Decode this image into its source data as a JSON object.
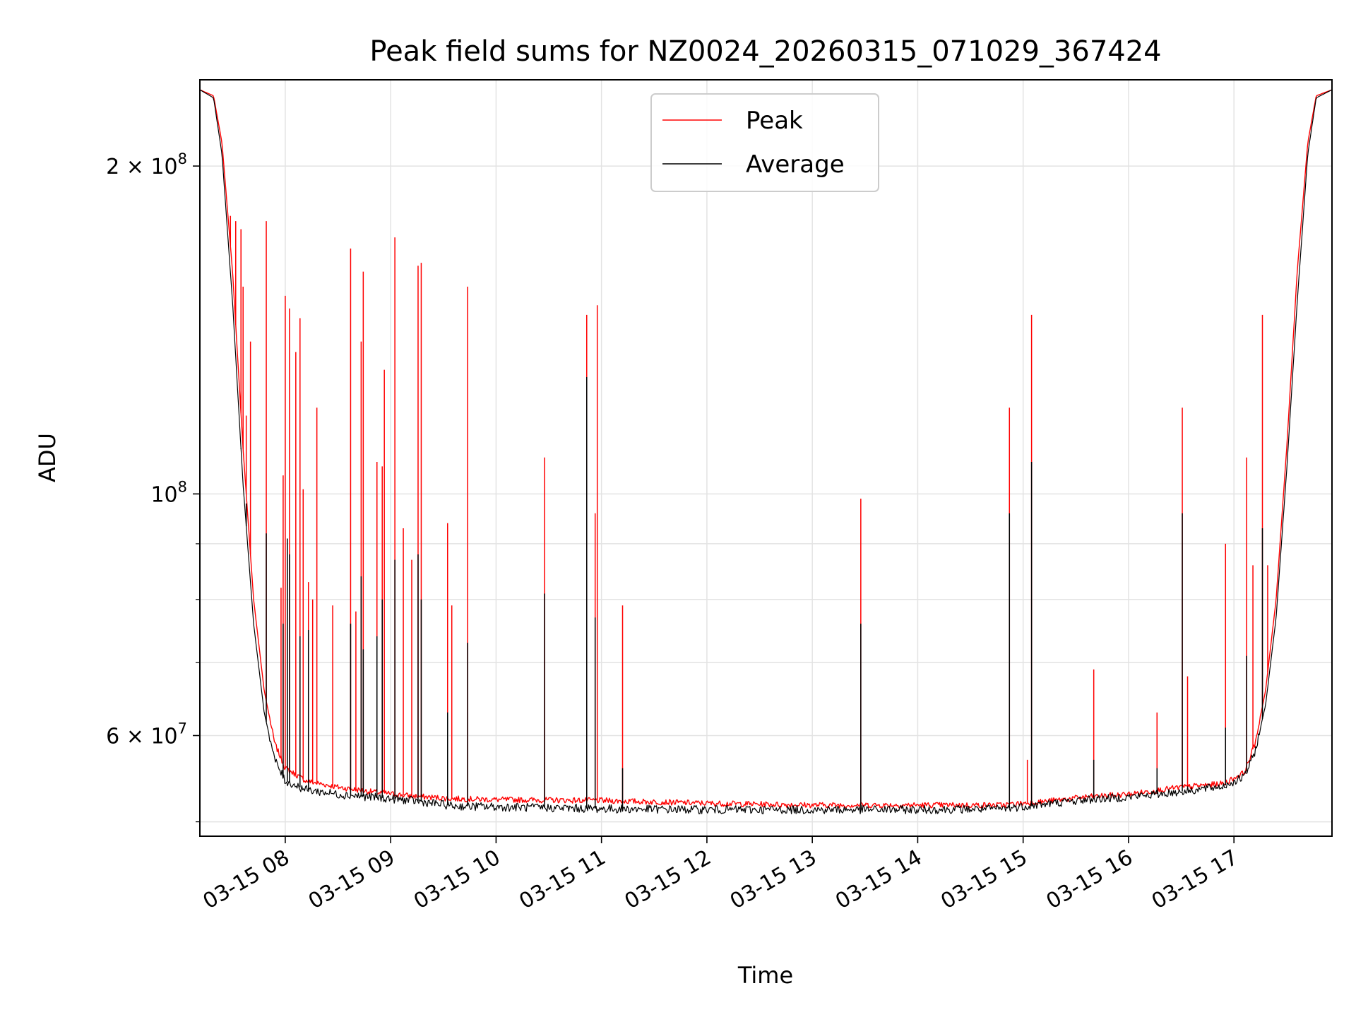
{
  "chart_data": {
    "type": "line",
    "title": "Peak field sums for NZ0024_20260315_071029_367424",
    "xlabel": "Time",
    "ylabel": "ADU",
    "yscale": "log",
    "ylim": [
      48500000,
      240000000
    ],
    "xlim_hours": [
      7.19,
      17.93
    ],
    "x_ticks": [
      {
        "hour": 8,
        "label": "03-15 08"
      },
      {
        "hour": 9,
        "label": "03-15 09"
      },
      {
        "hour": 10,
        "label": "03-15 10"
      },
      {
        "hour": 11,
        "label": "03-15 11"
      },
      {
        "hour": 12,
        "label": "03-15 12"
      },
      {
        "hour": 13,
        "label": "03-15 13"
      },
      {
        "hour": 14,
        "label": "03-15 14"
      },
      {
        "hour": 15,
        "label": "03-15 15"
      },
      {
        "hour": 16,
        "label": "03-15 16"
      },
      {
        "hour": 17,
        "label": "03-15 17"
      }
    ],
    "y_major_ticks": [
      {
        "value": 60000000,
        "mantissa": "6",
        "exponent": "7"
      },
      {
        "value": 100000000,
        "mantissa": "",
        "exponent": "8"
      },
      {
        "value": 200000000,
        "mantissa": "2",
        "exponent": "8"
      }
    ],
    "y_minor_values": [
      50000000,
      70000000,
      80000000,
      90000000
    ],
    "grid": true,
    "legend_position": "top-center",
    "colors": {
      "peak": "#ff0000",
      "average": "#000000"
    },
    "series": [
      {
        "name": "Peak",
        "color": "#ff0000",
        "baseline": [
          [
            7.19,
            235000000
          ],
          [
            7.32,
            232000000
          ],
          [
            7.4,
            210000000
          ],
          [
            7.5,
            160000000
          ],
          [
            7.6,
            110000000
          ],
          [
            7.7,
            80000000
          ],
          [
            7.8,
            66000000
          ],
          [
            7.9,
            59000000
          ],
          [
            8.0,
            56000000
          ],
          [
            8.2,
            54500000
          ],
          [
            8.5,
            53800000
          ],
          [
            8.8,
            53300000
          ],
          [
            9.2,
            52800000
          ],
          [
            9.6,
            52500000
          ],
          [
            10.0,
            52400000
          ],
          [
            11.0,
            52300000
          ],
          [
            12.0,
            52000000
          ],
          [
            13.0,
            51800000
          ],
          [
            14.0,
            51800000
          ],
          [
            14.8,
            51800000
          ],
          [
            15.2,
            52200000
          ],
          [
            15.6,
            52700000
          ],
          [
            16.0,
            53000000
          ],
          [
            16.5,
            53800000
          ],
          [
            16.9,
            54200000
          ],
          [
            17.1,
            55500000
          ],
          [
            17.2,
            59000000
          ],
          [
            17.3,
            66000000
          ],
          [
            17.4,
            80000000
          ],
          [
            17.5,
            110000000
          ],
          [
            17.6,
            160000000
          ],
          [
            17.7,
            210000000
          ],
          [
            17.78,
            232000000
          ],
          [
            17.93,
            235000000
          ]
        ],
        "spikes": [
          [
            7.48,
            180000000
          ],
          [
            7.53,
            178000000
          ],
          [
            7.58,
            175000000
          ],
          [
            7.6,
            155000000
          ],
          [
            7.63,
            118000000
          ],
          [
            7.67,
            138000000
          ],
          [
            7.82,
            178000000
          ],
          [
            7.96,
            82000000
          ],
          [
            7.98,
            104000000
          ],
          [
            8.0,
            152000000
          ],
          [
            8.04,
            148000000
          ],
          [
            8.1,
            135000000
          ],
          [
            8.14,
            145000000
          ],
          [
            8.17,
            101000000
          ],
          [
            8.22,
            83000000
          ],
          [
            8.26,
            80000000
          ],
          [
            8.3,
            120000000
          ],
          [
            8.45,
            79000000
          ],
          [
            8.62,
            168000000
          ],
          [
            8.67,
            78000000
          ],
          [
            8.72,
            138000000
          ],
          [
            8.74,
            160000000
          ],
          [
            8.87,
            107000000
          ],
          [
            8.92,
            106000000
          ],
          [
            8.94,
            130000000
          ],
          [
            9.04,
            172000000
          ],
          [
            9.12,
            93000000
          ],
          [
            9.2,
            87000000
          ],
          [
            9.26,
            162000000
          ],
          [
            9.29,
            163000000
          ],
          [
            9.54,
            94000000
          ],
          [
            9.58,
            79000000
          ],
          [
            9.73,
            155000000
          ],
          [
            10.46,
            108000000
          ],
          [
            10.86,
            146000000
          ],
          [
            10.94,
            96000000
          ],
          [
            10.96,
            149000000
          ],
          [
            11.2,
            79000000
          ],
          [
            13.46,
            99000000
          ],
          [
            14.87,
            120000000
          ],
          [
            15.04,
            57000000
          ],
          [
            15.08,
            146000000
          ],
          [
            15.67,
            69000000
          ],
          [
            16.27,
            63000000
          ],
          [
            16.51,
            120000000
          ],
          [
            16.56,
            68000000
          ],
          [
            16.92,
            90000000
          ],
          [
            17.12,
            108000000
          ],
          [
            17.18,
            86000000
          ],
          [
            17.27,
            146000000
          ],
          [
            17.32,
            86000000
          ]
        ]
      },
      {
        "name": "Average",
        "color": "#000000",
        "baseline": [
          [
            7.19,
            235000000
          ],
          [
            7.32,
            231000000
          ],
          [
            7.4,
            205000000
          ],
          [
            7.5,
            150000000
          ],
          [
            7.6,
            102000000
          ],
          [
            7.7,
            76000000
          ],
          [
            7.8,
            63000000
          ],
          [
            7.9,
            57000000
          ],
          [
            8.0,
            54500000
          ],
          [
            8.2,
            53500000
          ],
          [
            8.5,
            53000000
          ],
          [
            8.8,
            52700000
          ],
          [
            9.2,
            52300000
          ],
          [
            9.6,
            51700000
          ],
          [
            10.0,
            51600000
          ],
          [
            11.0,
            51400000
          ],
          [
            12.0,
            51300000
          ],
          [
            13.0,
            51300000
          ],
          [
            14.0,
            51300000
          ],
          [
            14.8,
            51400000
          ],
          [
            15.2,
            51900000
          ],
          [
            15.6,
            52400000
          ],
          [
            16.0,
            52700000
          ],
          [
            16.5,
            53300000
          ],
          [
            16.9,
            53900000
          ],
          [
            17.1,
            55000000
          ],
          [
            17.2,
            58000000
          ],
          [
            17.3,
            64000000
          ],
          [
            17.4,
            77000000
          ],
          [
            17.5,
            105000000
          ],
          [
            17.6,
            150000000
          ],
          [
            17.7,
            205000000
          ],
          [
            17.78,
            231000000
          ],
          [
            17.93,
            235000000
          ]
        ],
        "spikes": [
          [
            7.58,
            110000000
          ],
          [
            7.63,
            98000000
          ],
          [
            7.82,
            92000000
          ],
          [
            7.98,
            76000000
          ],
          [
            8.02,
            91000000
          ],
          [
            8.04,
            88000000
          ],
          [
            8.14,
            74000000
          ],
          [
            8.22,
            75000000
          ],
          [
            8.62,
            76000000
          ],
          [
            8.72,
            84000000
          ],
          [
            8.74,
            72000000
          ],
          [
            8.87,
            74000000
          ],
          [
            8.92,
            80000000
          ],
          [
            9.04,
            87000000
          ],
          [
            9.26,
            88000000
          ],
          [
            9.29,
            80000000
          ],
          [
            9.54,
            63000000
          ],
          [
            9.73,
            73000000
          ],
          [
            10.46,
            81000000
          ],
          [
            10.86,
            128000000
          ],
          [
            10.94,
            77000000
          ],
          [
            11.2,
            56000000
          ],
          [
            13.46,
            76000000
          ],
          [
            14.87,
            96000000
          ],
          [
            15.08,
            107000000
          ],
          [
            15.67,
            57000000
          ],
          [
            16.27,
            56000000
          ],
          [
            16.51,
            96000000
          ],
          [
            16.92,
            61000000
          ],
          [
            17.12,
            71000000
          ],
          [
            17.27,
            93000000
          ]
        ]
      }
    ]
  }
}
